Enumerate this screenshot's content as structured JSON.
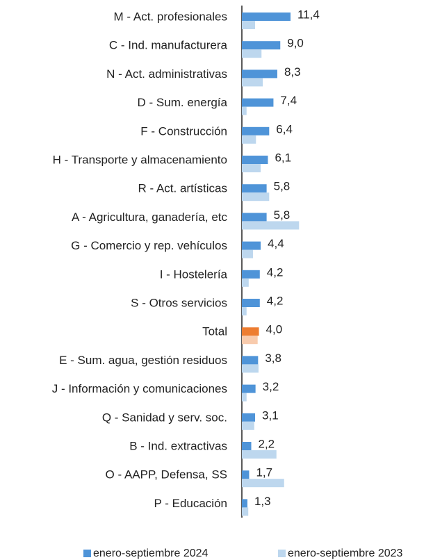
{
  "chart_data": {
    "type": "barh",
    "categories": [
      "M - Act. profesionales",
      "C - Ind. manufacturera",
      "N - Act. administrativas",
      "D - Sum. energía ",
      "F - Construcción",
      "H - Transporte y almacenamiento",
      "R - Act. artísticas",
      "A - Agricultura, ganadería, etc",
      "G - Comercio y rep. vehículos",
      "I - Hostelería",
      "S - Otros servicios",
      "Total",
      "E - Sum. agua, gestión residuos",
      "J - Información y comunicaciones",
      "Q - Sanidad y serv. soc.",
      "B - Ind. extractivas",
      "O - AAPP, Defensa, SS",
      "P - Educación"
    ],
    "series": [
      {
        "name": "enero-septiembre 2024",
        "color": "#4f94d8",
        "values": [
          11.4,
          9.0,
          8.3,
          7.4,
          6.4,
          6.1,
          5.8,
          5.8,
          4.4,
          4.2,
          4.2,
          4.0,
          3.8,
          3.2,
          3.1,
          2.2,
          1.7,
          1.3
        ],
        "value_labels": [
          "11,4",
          "9,0",
          "8,3",
          "7,4",
          "6,4",
          "6,1",
          "5,8",
          "5,8",
          "4,4",
          "4,2",
          "4,2",
          "4,0",
          "3,8",
          "3,2",
          "3,1",
          "2,2",
          "1,7",
          "1,3"
        ]
      },
      {
        "name": "enero-septiembre 2023",
        "color": "#bdd7ee",
        "values": [
          3.1,
          4.6,
          4.9,
          1.1,
          3.3,
          4.4,
          6.4,
          13.4,
          2.6,
          1.6,
          1.1,
          3.7,
          3.9,
          1.1,
          2.9,
          8.1,
          9.9,
          1.5
        ]
      }
    ],
    "highlight": {
      "index": 11,
      "colors": [
        "#ed7d31",
        "#f8cbad"
      ]
    }
  }
}
